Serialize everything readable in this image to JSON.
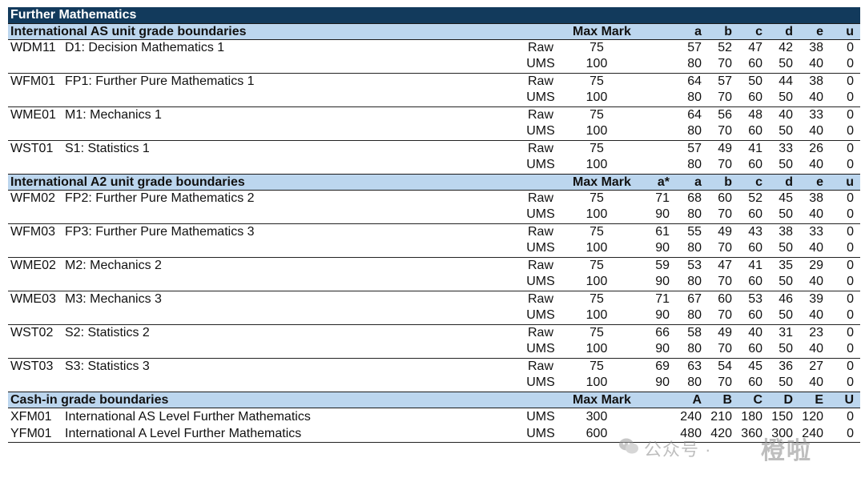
{
  "title": "Further Mathematics",
  "as_section": {
    "heading": "International AS unit grade boundaries",
    "col_max_mark": "Max Mark",
    "grade_cols": [
      "",
      "a",
      "b",
      "c",
      "d",
      "e",
      "u"
    ],
    "units": [
      {
        "code": "WDM11",
        "name": "D1: Decision Mathematics 1",
        "raw": {
          "label": "Raw",
          "max": "75",
          "grades": [
            "",
            "57",
            "52",
            "47",
            "42",
            "38",
            "0"
          ]
        },
        "ums": {
          "label": "UMS",
          "max": "100",
          "grades": [
            "",
            "80",
            "70",
            "60",
            "50",
            "40",
            "0"
          ]
        }
      },
      {
        "code": "WFM01",
        "name": "FP1: Further Pure Mathematics 1",
        "raw": {
          "label": "Raw",
          "max": "75",
          "grades": [
            "",
            "64",
            "57",
            "50",
            "44",
            "38",
            "0"
          ]
        },
        "ums": {
          "label": "UMS",
          "max": "100",
          "grades": [
            "",
            "80",
            "70",
            "60",
            "50",
            "40",
            "0"
          ]
        }
      },
      {
        "code": "WME01",
        "name": "M1: Mechanics 1",
        "raw": {
          "label": "Raw",
          "max": "75",
          "grades": [
            "",
            "64",
            "56",
            "48",
            "40",
            "33",
            "0"
          ]
        },
        "ums": {
          "label": "UMS",
          "max": "100",
          "grades": [
            "",
            "80",
            "70",
            "60",
            "50",
            "40",
            "0"
          ]
        }
      },
      {
        "code": "WST01",
        "name": "S1: Statistics 1",
        "raw": {
          "label": "Raw",
          "max": "75",
          "grades": [
            "",
            "57",
            "49",
            "41",
            "33",
            "26",
            "0"
          ]
        },
        "ums": {
          "label": "UMS",
          "max": "100",
          "grades": [
            "",
            "80",
            "70",
            "60",
            "50",
            "40",
            "0"
          ]
        }
      }
    ]
  },
  "a2_section": {
    "heading": "International A2 unit grade boundaries",
    "col_max_mark": "Max Mark",
    "grade_cols": [
      "a*",
      "a",
      "b",
      "c",
      "d",
      "e",
      "u"
    ],
    "units": [
      {
        "code": "WFM02",
        "name": "FP2: Further Pure Mathematics 2",
        "raw": {
          "label": "Raw",
          "max": "75",
          "grades": [
            "71",
            "68",
            "60",
            "52",
            "45",
            "38",
            "0"
          ]
        },
        "ums": {
          "label": "UMS",
          "max": "100",
          "grades": [
            "90",
            "80",
            "70",
            "60",
            "50",
            "40",
            "0"
          ]
        }
      },
      {
        "code": "WFM03",
        "name": "FP3: Further Pure Mathematics 3",
        "raw": {
          "label": "Raw",
          "max": "75",
          "grades": [
            "61",
            "55",
            "49",
            "43",
            "38",
            "33",
            "0"
          ]
        },
        "ums": {
          "label": "UMS",
          "max": "100",
          "grades": [
            "90",
            "80",
            "70",
            "60",
            "50",
            "40",
            "0"
          ]
        }
      },
      {
        "code": "WME02",
        "name": "M2: Mechanics 2",
        "raw": {
          "label": "Raw",
          "max": "75",
          "grades": [
            "59",
            "53",
            "47",
            "41",
            "35",
            "29",
            "0"
          ]
        },
        "ums": {
          "label": "UMS",
          "max": "100",
          "grades": [
            "90",
            "80",
            "70",
            "60",
            "50",
            "40",
            "0"
          ]
        }
      },
      {
        "code": "WME03",
        "name": "M3: Mechanics 3",
        "raw": {
          "label": "Raw",
          "max": "75",
          "grades": [
            "71",
            "67",
            "60",
            "53",
            "46",
            "39",
            "0"
          ]
        },
        "ums": {
          "label": "UMS",
          "max": "100",
          "grades": [
            "90",
            "80",
            "70",
            "60",
            "50",
            "40",
            "0"
          ]
        }
      },
      {
        "code": "WST02",
        "name": "S2: Statistics 2",
        "raw": {
          "label": "Raw",
          "max": "75",
          "grades": [
            "66",
            "58",
            "49",
            "40",
            "31",
            "23",
            "0"
          ]
        },
        "ums": {
          "label": "UMS",
          "max": "100",
          "grades": [
            "90",
            "80",
            "70",
            "60",
            "50",
            "40",
            "0"
          ]
        }
      },
      {
        "code": "WST03",
        "name": "S3: Statistics 3",
        "raw": {
          "label": "Raw",
          "max": "75",
          "grades": [
            "69",
            "63",
            "54",
            "45",
            "36",
            "27",
            "0"
          ]
        },
        "ums": {
          "label": "UMS",
          "max": "100",
          "grades": [
            "90",
            "80",
            "70",
            "60",
            "50",
            "40",
            "0"
          ]
        }
      }
    ]
  },
  "cashin_section": {
    "heading": "Cash-in grade boundaries",
    "col_max_mark": "Max Mark",
    "grade_cols": [
      "",
      "A",
      "B",
      "C",
      "D",
      "E",
      "U"
    ],
    "rows": [
      {
        "code": "XFM01",
        "name": "International AS Level Further Mathematics",
        "label": "UMS",
        "max": "300",
        "grades": [
          "",
          "240",
          "210",
          "180",
          "150",
          "120",
          "0"
        ]
      },
      {
        "code": "YFM01",
        "name": "International A Level Further Mathematics",
        "label": "UMS",
        "max": "600",
        "grades": [
          "",
          "480",
          "420",
          "360",
          "300",
          "240",
          "0"
        ]
      }
    ]
  },
  "watermark": {
    "text": "公众号 ·",
    "brand": "橙啦"
  },
  "colors": {
    "title_bg": "#123a5c",
    "section_bg": "#bcd6ee"
  }
}
